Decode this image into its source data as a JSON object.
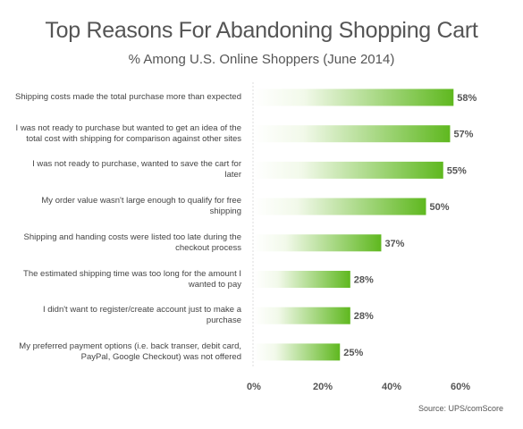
{
  "chart_data": {
    "type": "bar",
    "orientation": "horizontal",
    "title": "Top Reasons For Abandoning Shopping Cart",
    "subtitle": "% Among U.S. Online Shoppers (June 2014)",
    "categories": [
      "Shipping costs made the total purchase more than expected",
      "I was not ready to purchase but wanted to get an idea of the total cost with shipping for comparison against other sites",
      "I was not ready to purchase, wanted to save the cart for later",
      "My order value wasn't large enough to qualify for free shipping",
      "Shipping and handing costs were listed too late during the checkout process",
      "The estimated shipping time was too long for the amount I wanted to pay",
      "I didn't want to register/create account just to make a purchase",
      "My preferred payment options (i.e. back transer, debit card, PayPal, Google Checkout) was not offered"
    ],
    "values": [
      58,
      57,
      55,
      50,
      37,
      28,
      28,
      25
    ],
    "value_labels": [
      "58%",
      "57%",
      "55%",
      "50%",
      "37%",
      "28%",
      "28%",
      "25%"
    ],
    "xlim": [
      0,
      60
    ],
    "xticks": [
      "0%",
      "20%",
      "40%",
      "60%"
    ],
    "xtick_values": [
      0,
      20,
      40,
      60
    ],
    "grid": false,
    "bar_color_start": "#ffffff",
    "bar_color_end": "#5fb81f"
  },
  "source": "Source: UPS/comScore"
}
